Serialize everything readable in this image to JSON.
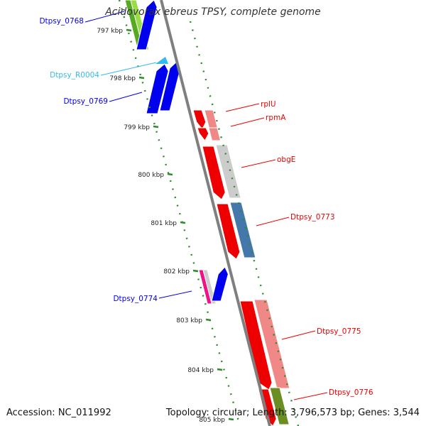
{
  "title": "Acidovorax ebreus TPSY, complete genome",
  "footer": {
    "accession": "Accession: NC_011992",
    "topology": "Topology: circular",
    "length": "Length: 3,796,573 bp",
    "genes": "Genes: 3,544"
  },
  "colors": {
    "backbone": "#7f7f7f",
    "tick": "#2e8b2e",
    "blue_label": "#0000aa",
    "red_label": "#cc0000",
    "cyan_label": "#33bbee"
  },
  "kbp_ticks": [
    {
      "label": "797 kbp",
      "kbp": 797
    },
    {
      "label": "798 kbp",
      "kbp": 798
    },
    {
      "label": "799 kbp",
      "kbp": 799
    },
    {
      "label": "800 kbp",
      "kbp": 800
    },
    {
      "label": "801 kbp",
      "kbp": 801
    },
    {
      "label": "802 kbp",
      "kbp": 802
    },
    {
      "label": "803 kbp",
      "kbp": 803
    },
    {
      "label": "804 kbp",
      "kbp": 804
    },
    {
      "label": "805 kbp",
      "kbp": 805
    }
  ],
  "genes": [
    {
      "name": "Dtpsy_0768",
      "strand": "+",
      "color": "#0000ee"
    },
    {
      "name": "Dtpsy_R0004",
      "strand": "+",
      "color": "#33bbee"
    },
    {
      "name": "Dtpsy_0769",
      "strand": "+",
      "color": "#0000ee"
    },
    {
      "name": "rplU",
      "strand": "-",
      "color": "#ee0000"
    },
    {
      "name": "rpmA",
      "strand": "-",
      "color": "#ee0000"
    },
    {
      "name": "obgE",
      "strand": "-",
      "color": "#ee0000"
    },
    {
      "name": "Dtpsy_0773",
      "strand": "-",
      "color": "#ee0000"
    },
    {
      "name": "Dtpsy_0774",
      "strand": "+",
      "color": "#0000ee"
    },
    {
      "name": "Dtpsy_0775",
      "strand": "-",
      "color": "#ee0000"
    },
    {
      "name": "Dtpsy_0776",
      "strand": "-",
      "color": "#ee0000"
    }
  ]
}
